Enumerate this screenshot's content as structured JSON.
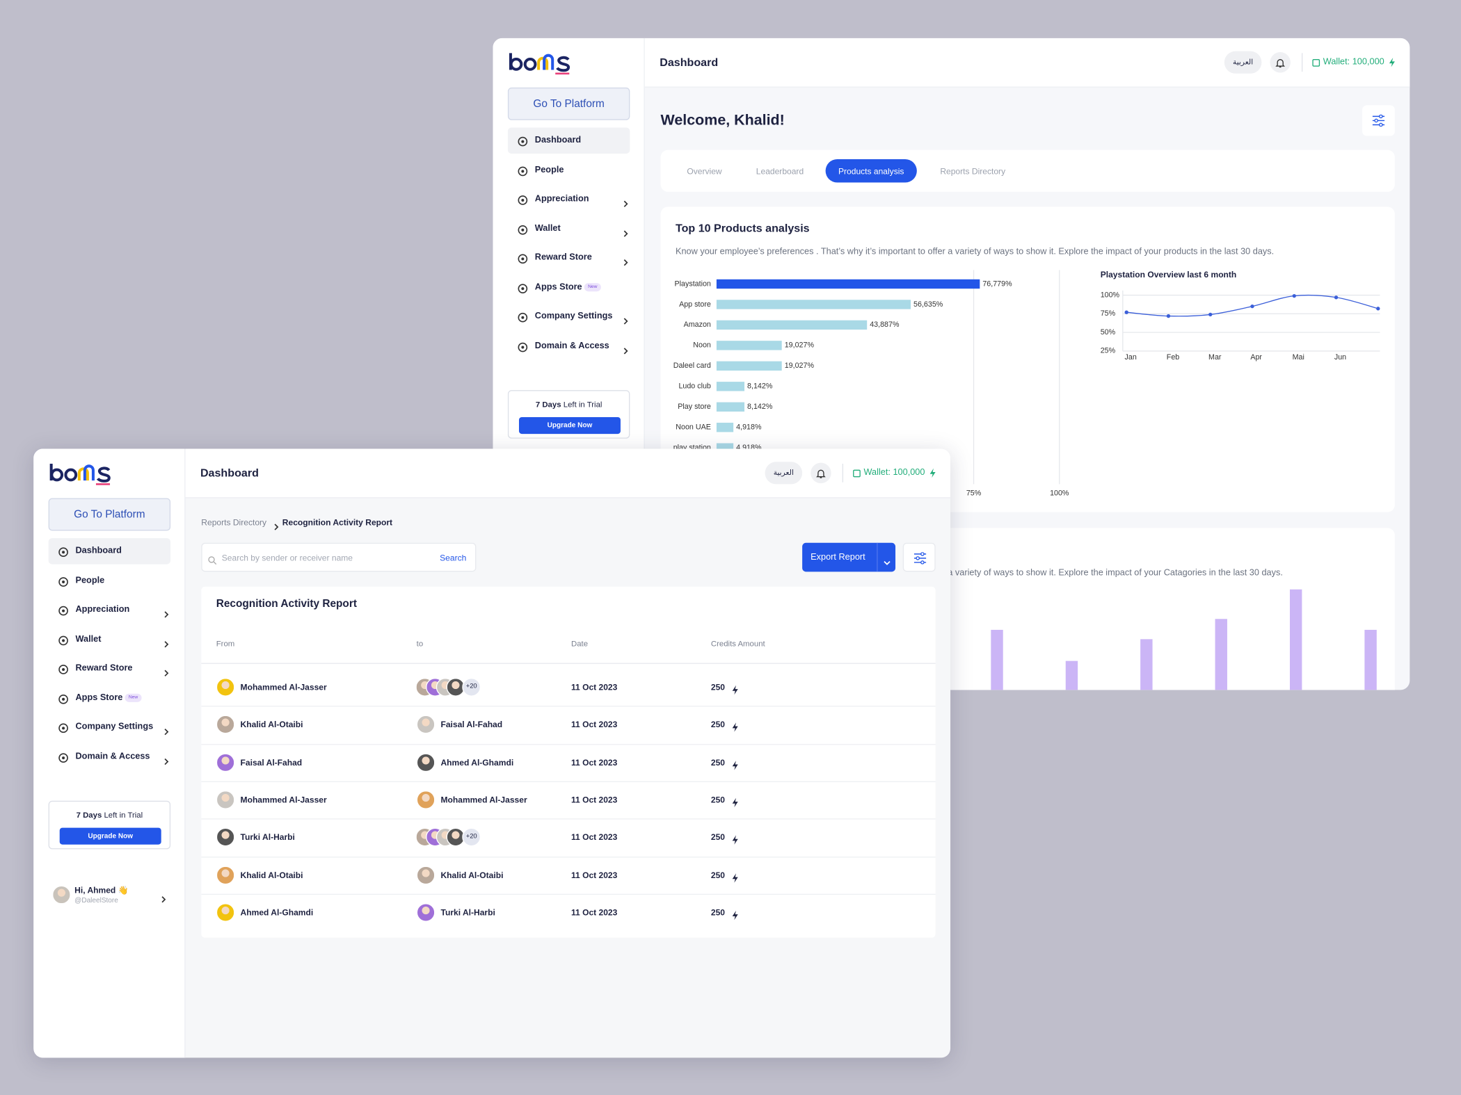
{
  "sidebar": {
    "platform_button": "Go To Platform",
    "nav": [
      {
        "label": "Dashboard",
        "active": true
      },
      {
        "label": "People"
      },
      {
        "label": "Appreciation",
        "submenu": true
      },
      {
        "label": "Wallet",
        "submenu": true
      },
      {
        "label": "Reward Store",
        "submenu": true
      },
      {
        "label": "Apps Store",
        "badge": "New"
      },
      {
        "label": "Company Settings",
        "submenu": true
      },
      {
        "label": "Domain & Access",
        "submenu": true
      }
    ],
    "trial": {
      "days": "7 Days",
      "text": "Left in Trial",
      "button": "Upgrade Now"
    }
  },
  "topbar": {
    "title": "Dashboard",
    "language": "العربية",
    "wallet": "Wallet: 100,000"
  },
  "back": {
    "welcome": "Welcome, Khalid!",
    "tabs": [
      "Overview",
      "Leaderboard",
      "Products analysis",
      "Reports Directory"
    ],
    "active_tab": 2
  },
  "chart_data": [
    {
      "type": "bar",
      "orientation": "horizontal",
      "title": "Top 10 Products analysis",
      "subtitle": "Know your employee’s preferences . That’s why it’s important to offer a variety of ways to show it. Explore the impact of your products in the last 30 days.",
      "categories": [
        "Playstation",
        "App store",
        "Amazon",
        "Noon",
        "Daleel card",
        "Ludo club",
        "Play store",
        "Noon UAE",
        "play station"
      ],
      "values": [
        76.779,
        56.635,
        43.887,
        19.027,
        19.027,
        8.142,
        8.142,
        4.918,
        4.918
      ],
      "value_labels": [
        "76,779%",
        "56,635%",
        "43,887%",
        "19,027%",
        "19,027%",
        "8,142%",
        "8,142%",
        "4,918%",
        "4,918%"
      ],
      "colors": [
        "#2356e8",
        "#a9d9e6",
        "#a9d9e6",
        "#a9d9e6",
        "#a9d9e6",
        "#a9d9e6",
        "#a9d9e6",
        "#a9d9e6",
        "#a9d9e6"
      ],
      "xlim": [
        0,
        100
      ],
      "xticks": [
        {
          "value": 75,
          "label": "75%"
        },
        {
          "value": 100,
          "label": "100%"
        }
      ],
      "grid": true
    },
    {
      "type": "line",
      "title": "Playstation Overview last 6 month",
      "categories": [
        "Jan",
        "Feb",
        "Mar",
        "Apr",
        "Mai",
        "Jun",
        null
      ],
      "values": [
        77,
        72,
        74,
        85,
        99,
        97,
        82
      ],
      "color": "#3b5fd9",
      "ylim": [
        25,
        100
      ],
      "yticks": [
        {
          "value": 100,
          "label": "100%"
        },
        {
          "value": 75,
          "label": "75%"
        },
        {
          "value": 50,
          "label": "50%"
        },
        {
          "value": 25,
          "label": "25%"
        }
      ],
      "grid": true
    },
    {
      "type": "bar",
      "subtitle": "Know your employee’s preferences . That’s why it’s important to offer a variety of ways to show it. Explore the impact of your Catagories in the last 30 days.",
      "values": [
        74,
        54,
        68,
        81,
        100,
        74
      ],
      "color": "#cbb5f6",
      "ylim": [
        0,
        100
      ]
    }
  ],
  "front": {
    "breadcrumb": [
      "Reports Directory",
      "Recognition Activity Report"
    ],
    "search": {
      "placeholder": "Search by sender or receiver name",
      "button": "Search"
    },
    "export": "Export Report",
    "table": {
      "title": "Recognition Activity Report",
      "columns": [
        "From",
        "to",
        "Date",
        "Credits Amount"
      ],
      "rows": [
        {
          "from": "Mohammed Al-Jasser",
          "to_more": "+20",
          "date": "11 Oct 2023",
          "credits": 250
        },
        {
          "from": "Khalid Al-Otaibi",
          "to": "Faisal Al-Fahad",
          "date": "11 Oct 2023",
          "credits": 250
        },
        {
          "from": "Faisal Al-Fahad",
          "to": "Ahmed Al-Ghamdi",
          "date": "11 Oct 2023",
          "credits": 250
        },
        {
          "from": "Mohammed Al-Jasser",
          "to": "Mohammed Al-Jasser",
          "date": "11 Oct 2023",
          "credits": 250
        },
        {
          "from": "Turki Al-Harbi",
          "to_more": "+20",
          "date": "11 Oct 2023",
          "credits": 250
        },
        {
          "from": "Khalid Al-Otaibi",
          "to": "Khalid Al-Otaibi",
          "date": "11 Oct 2023",
          "credits": 250
        },
        {
          "from": "Ahmed Al-Ghamdi",
          "to": "Turki Al-Harbi",
          "date": "11 Oct 2023",
          "credits": 250
        }
      ]
    },
    "user": {
      "greeting": "Hi, Ahmed 👋",
      "handle": "@DaleelStore"
    }
  }
}
